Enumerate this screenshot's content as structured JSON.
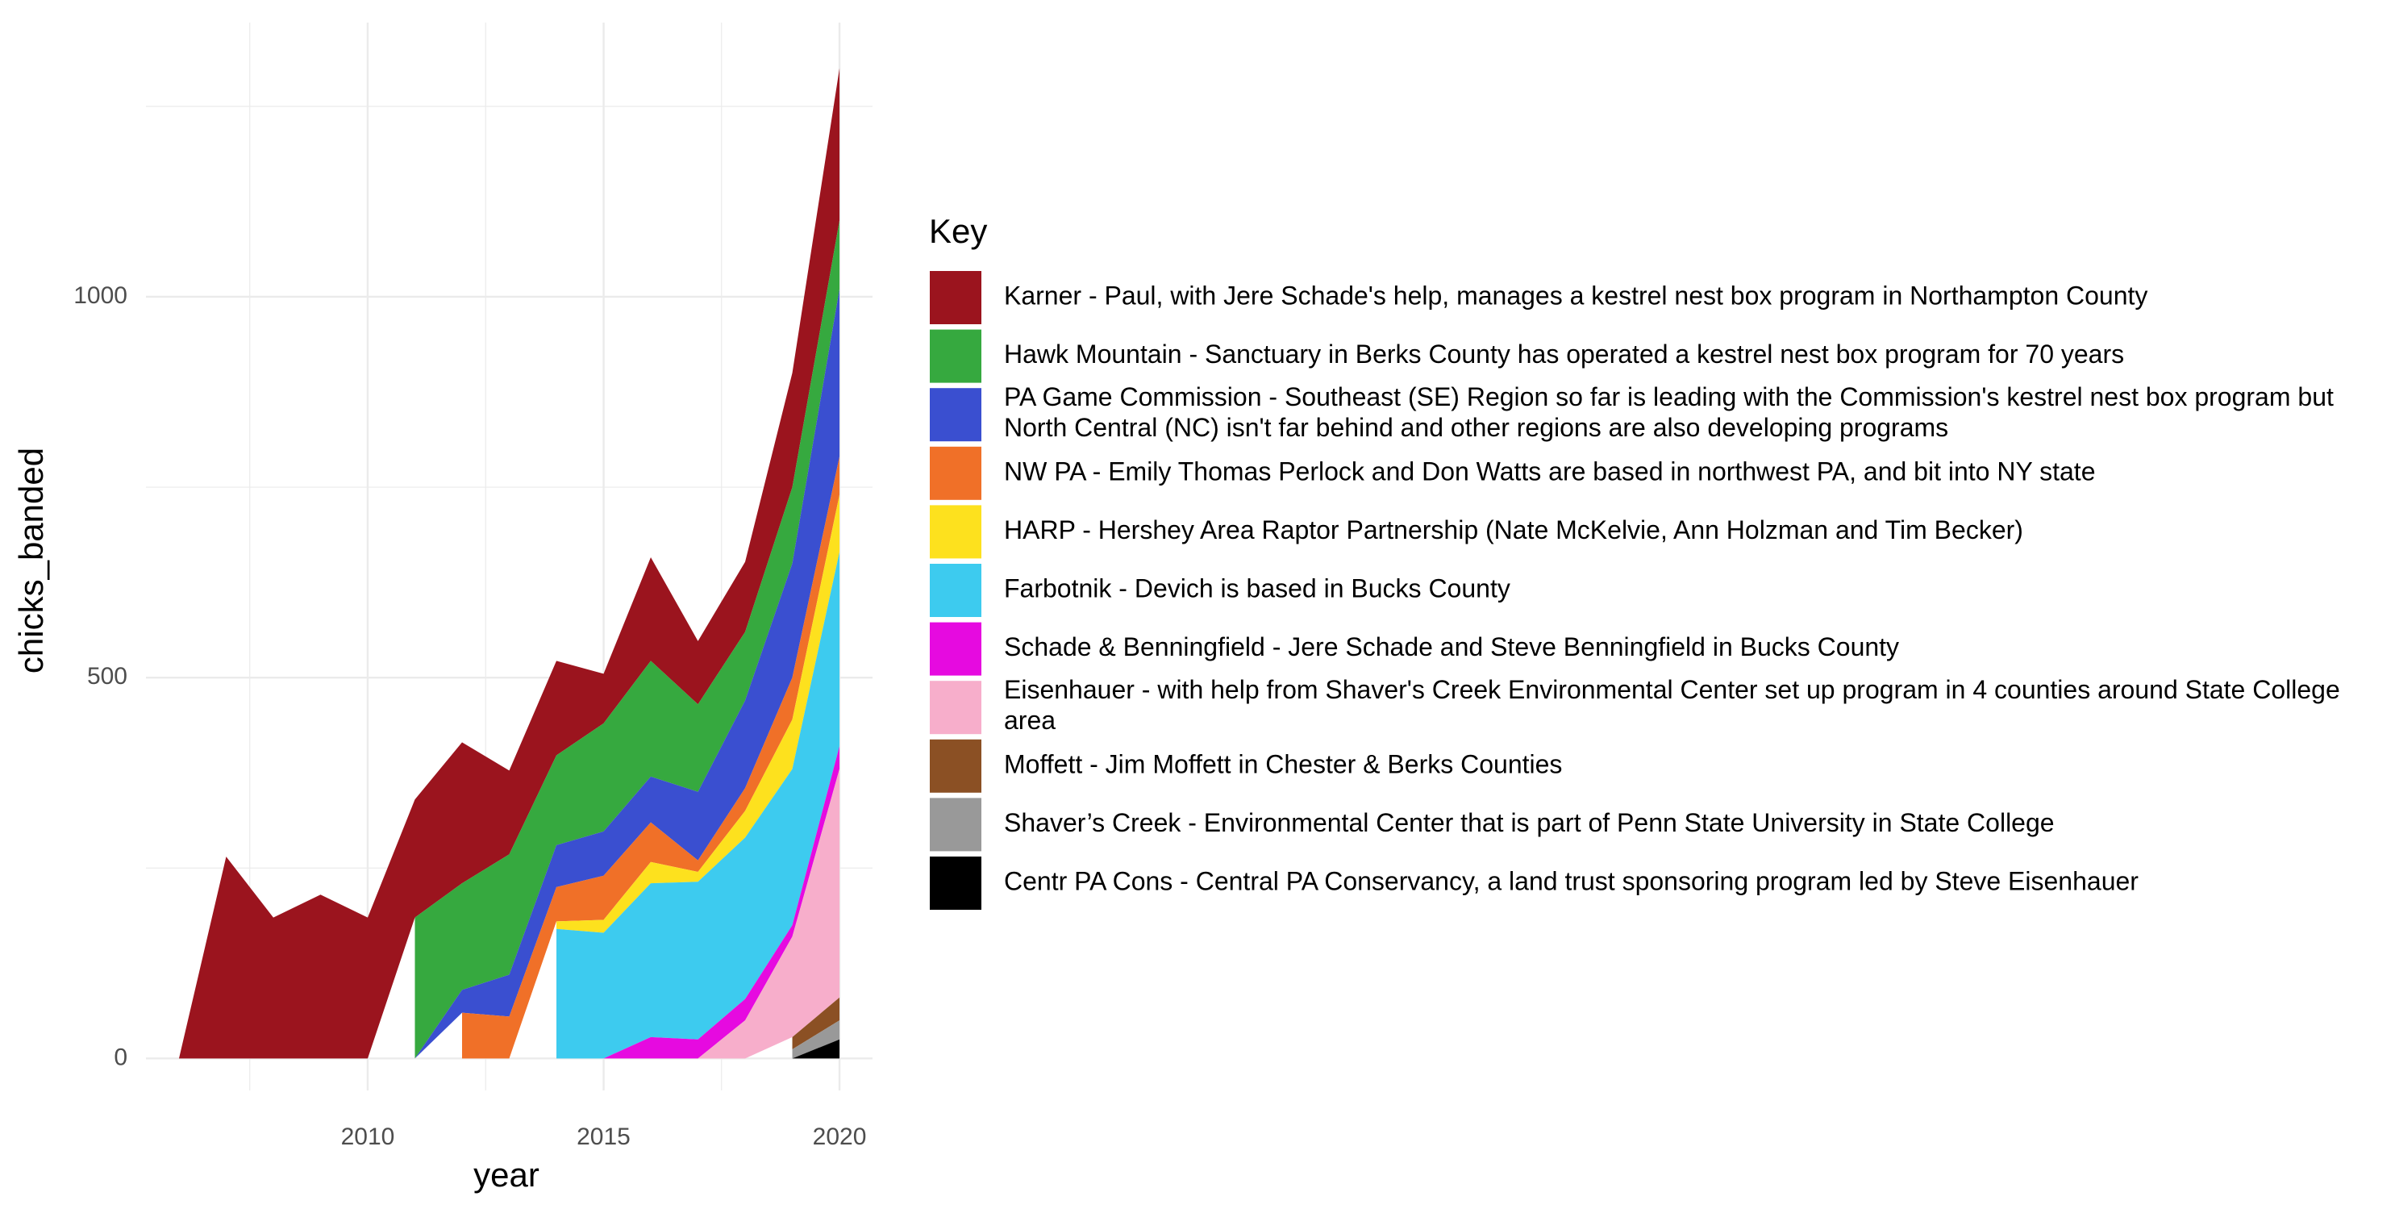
{
  "chart_data": {
    "type": "area",
    "stacked": true,
    "x_label": "year",
    "y_label": "chicks_banded",
    "legend_title": "Key",
    "x": [
      2006,
      2007,
      2008,
      2009,
      2010,
      2011,
      2012,
      2013,
      2014,
      2015,
      2016,
      2017,
      2018,
      2019,
      2020
    ],
    "xlim": [
      2005.3,
      2020.7
    ],
    "xticks": [
      2010,
      2015,
      2020
    ],
    "xminor": [
      2007.5,
      2012.5,
      2017.5
    ],
    "ylim": [
      -42,
      1360
    ],
    "yticks": [
      0,
      500,
      1000
    ],
    "yminor": [
      250,
      750,
      1250
    ],
    "grid": true,
    "legend": "right",
    "series": [
      {
        "name": "Karner - Paul, with Jere Schade's help, manages a kestrel nest box program in Northampton County",
        "color": "#9b141e",
        "values": [
          0,
          265,
          185,
          215,
          185,
          155,
          185,
          110,
          124,
          65,
          136,
          83,
          92,
          150,
          200
        ]
      },
      {
        "name": "Hawk Mountain - Sanctuary in Berks County has operated a kestrel nest box program for 70 years",
        "color": "#36a93f",
        "values": [
          null,
          null,
          null,
          null,
          null,
          185,
          140,
          158,
          118,
          142,
          152,
          115,
          90,
          100,
          90
        ]
      },
      {
        "name": "PA Game Commission - Southeast (SE) Region so far is leading with the Commission's kestrel nest box program but North Central (NC) isn't far behind and other regions are also developing programs",
        "color": "#3a4fd0",
        "values": [
          null,
          null,
          null,
          null,
          null,
          0,
          30,
          55,
          55,
          58,
          60,
          90,
          115,
          150,
          220
        ]
      },
      {
        "name": "NW PA - Emily Thomas Perlock and Don Watts are based in northwest PA, and bit into NY state",
        "color": "#f07028",
        "values": [
          null,
          null,
          null,
          null,
          null,
          null,
          60,
          55,
          45,
          58,
          52,
          15,
          30,
          55,
          50
        ]
      },
      {
        "name": "HARP - Hershey Area Raptor Partnership (Nate McKelvie, Ann Holzman and Tim Becker)",
        "color": "#fde11e",
        "values": [
          null,
          null,
          null,
          null,
          null,
          null,
          null,
          null,
          10,
          17,
          28,
          13,
          35,
          65,
          75
        ]
      },
      {
        "name": "Farbotnik - Devich is based in Bucks County",
        "color": "#3dcbef",
        "values": [
          null,
          null,
          null,
          null,
          null,
          null,
          null,
          null,
          170,
          165,
          202,
          207,
          212,
          205,
          255
        ]
      },
      {
        "name": "Schade & Benningfield - Jere Schade and Steve Benningfield in Bucks County",
        "color": "#e60ae0",
        "values": [
          null,
          null,
          null,
          null,
          null,
          null,
          null,
          null,
          null,
          0,
          28,
          25,
          28,
          15,
          30
        ]
      },
      {
        "name": "Eisenhauer - with help from Shaver's Creek Environmental Center set up program in 4 counties around State College area",
        "color": "#f7aecb",
        "values": [
          null,
          null,
          null,
          null,
          null,
          null,
          null,
          null,
          null,
          null,
          null,
          0,
          50,
          132,
          300
        ]
      },
      {
        "name": "Moffett - Jim Moffett in Chester & Berks Counties",
        "color": "#8b5024",
        "values": [
          null,
          null,
          null,
          null,
          null,
          null,
          null,
          null,
          null,
          null,
          null,
          null,
          null,
          16,
          30
        ]
      },
      {
        "name": "Shaver’s Creek - Environmental Center that is part of Penn State University in State College",
        "color": "#999999",
        "values": [
          null,
          null,
          null,
          null,
          null,
          null,
          null,
          null,
          null,
          null,
          null,
          null,
          null,
          12,
          25
        ]
      },
      {
        "name": "Centr PA Cons - Central PA Conservancy, a land trust sponsoring program led by Steve Eisenhauer",
        "color": "#000000",
        "values": [
          null,
          null,
          null,
          null,
          null,
          null,
          null,
          null,
          null,
          null,
          null,
          null,
          null,
          0,
          25
        ]
      }
    ]
  }
}
